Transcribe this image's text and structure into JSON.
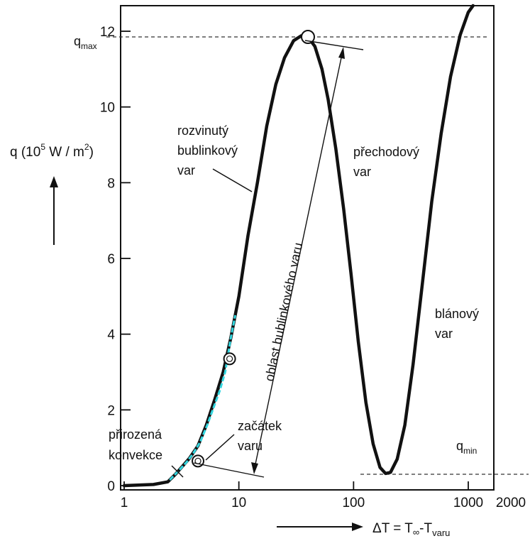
{
  "chart_data": {
    "type": "line",
    "xscale": "log",
    "xlim": [
      1,
      2000
    ],
    "ylim": [
      0,
      12.8
    ],
    "ylabel": "q (10⁵ W / m²)",
    "xlabel": "ΔT = T∞-Tvaru",
    "grid": false,
    "x_ticks": [
      1,
      10,
      100,
      1000,
      2000
    ],
    "y_ticks": [
      0,
      2,
      4,
      6,
      8,
      10,
      12
    ],
    "x_tick_labels": [
      "1",
      "10",
      "100",
      "1000",
      "2000"
    ],
    "y_tick_labels": [
      "0",
      "2",
      "4",
      "6",
      "8",
      "10",
      "12"
    ],
    "curve": {
      "x": [
        1,
        1.8,
        2.4,
        2.8,
        3.2,
        3.7,
        4.4,
        5.2,
        6.2,
        7.3,
        8.5,
        10,
        12,
        14.5,
        17.5,
        21,
        25,
        30,
        35,
        40,
        46,
        53,
        60,
        70,
        82,
        95,
        110,
        128,
        148,
        170,
        190,
        210,
        240,
        280,
        330,
        400,
        480,
        580,
        700,
        850,
        1000,
        1100
      ],
      "y": [
        0,
        0.03,
        0.1,
        0.3,
        0.5,
        0.72,
        1.05,
        1.6,
        2.3,
        3.0,
        3.9,
        5.0,
        6.6,
        8.0,
        9.5,
        10.6,
        11.3,
        11.75,
        11.88,
        11.85,
        11.6,
        11.0,
        10.2,
        8.9,
        7.3,
        5.6,
        3.8,
        2.2,
        1.1,
        0.48,
        0.32,
        0.35,
        0.7,
        1.6,
        3.2,
        5.4,
        7.5,
        9.3,
        10.8,
        11.9,
        12.5,
        12.9
      ]
    },
    "highlight_segment": {
      "x": [
        2.5,
        3.0,
        3.5,
        4.0,
        4.6,
        5.3,
        6.0,
        6.8,
        7.6,
        8.5,
        9.3
      ],
      "y": [
        0.15,
        0.4,
        0.62,
        0.85,
        1.15,
        1.6,
        2.05,
        2.5,
        3.0,
        3.9,
        4.5
      ]
    },
    "markers": [
      {
        "x": 4.4,
        "y": 0.65
      },
      {
        "x": 8.3,
        "y": 3.35
      },
      {
        "x": 40,
        "y": 11.85
      }
    ],
    "reference_lines": [
      {
        "label": "qmax",
        "y": 11.85
      },
      {
        "label": "qmin",
        "y": 0.3
      }
    ],
    "annotations": {
      "prirozena": [
        "přirozená",
        "konvekce"
      ],
      "zacatek": [
        "začátek",
        "varu"
      ],
      "rozvinuty": [
        "rozvinutý",
        "bublinkový",
        "var"
      ],
      "prechodovy": [
        "přechodový",
        "var"
      ],
      "blanovy": [
        "blánový",
        "var"
      ],
      "oblast": "oblast bublinkového varu"
    }
  }
}
